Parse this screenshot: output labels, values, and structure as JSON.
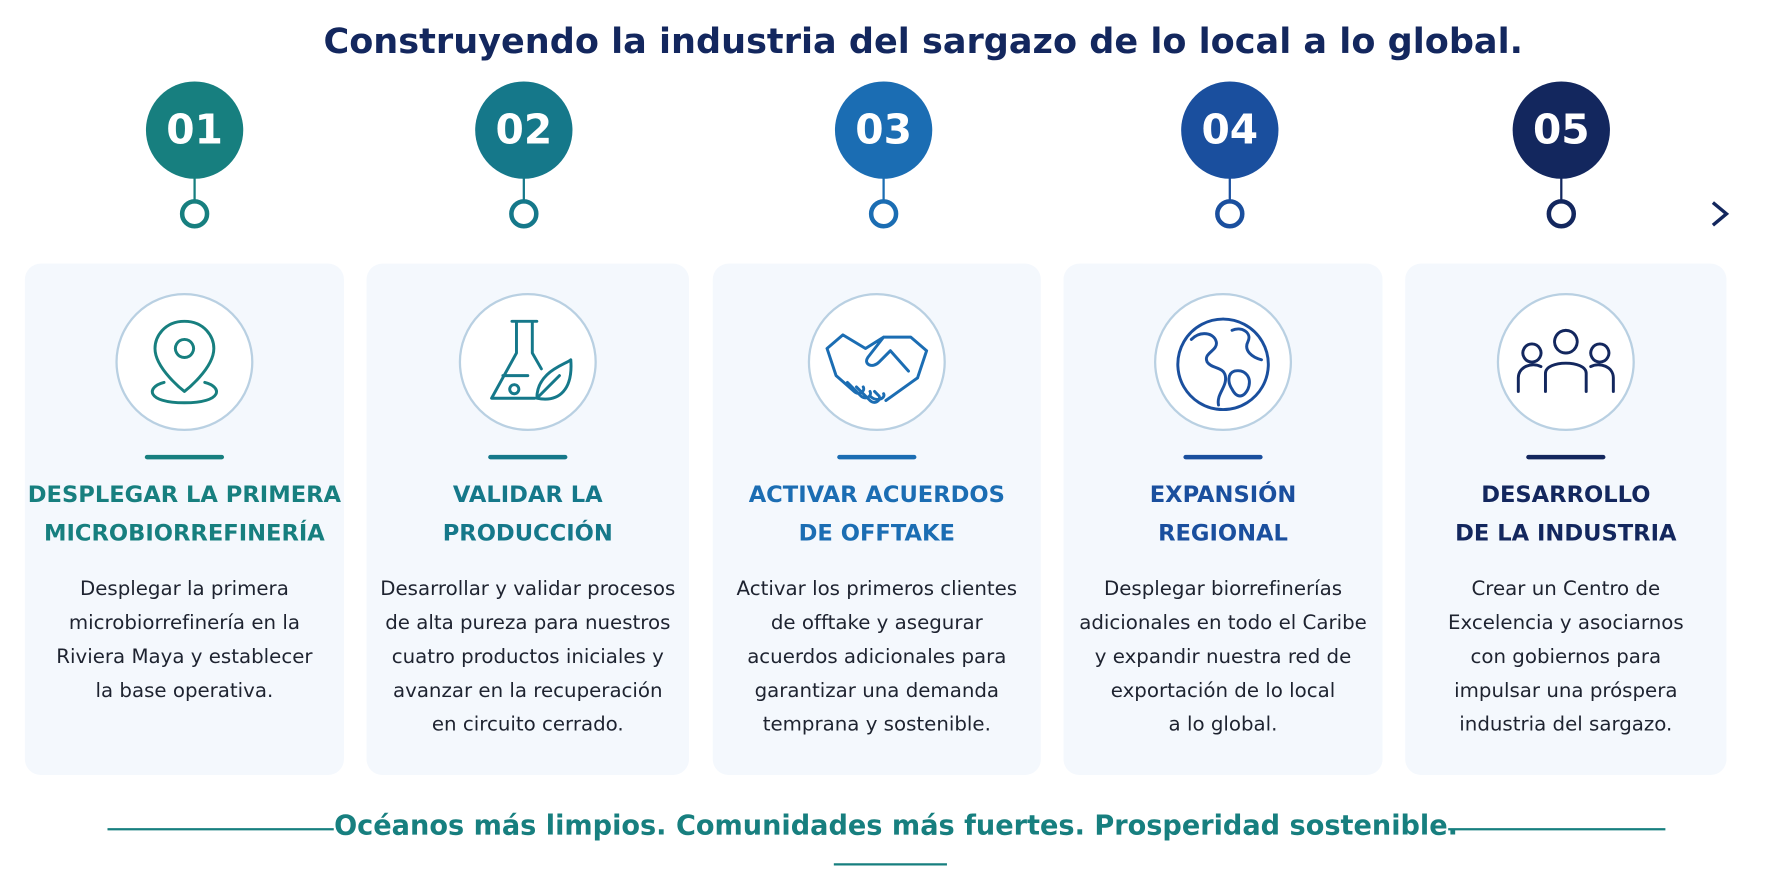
{
  "header": {
    "title": "Construyendo la industria del sargazo de lo local a lo global."
  },
  "steps": [
    {
      "number": "01",
      "color": "#177f7f",
      "title": [
        "DESPLEGAR LA PRIMERA",
        "MICROBIORREFINERÍA"
      ],
      "description": [
        "Desplegar la primera",
        "microbiorrefinería en la",
        "Riviera Maya y establecer",
        "la base operativa."
      ]
    },
    {
      "number": "02",
      "color": "#15788a",
      "title": [
        "VALIDAR LA",
        "PRODUCCIÓN"
      ],
      "description": [
        "Desarrollar y validar procesos",
        "de alta pureza para nuestros",
        "cuatro productos iniciales y",
        "avanzar en la recuperación",
        "en circuito cerrado."
      ]
    },
    {
      "number": "03",
      "color": "#1b6db3",
      "title": [
        "ACTIVAR ACUERDOS",
        "DE OFFTAKE"
      ],
      "description": [
        "Activar los primeros clientes",
        "de offtake y asegurar",
        "acuerdos adicionales para",
        "garantizar una demanda",
        "temprana y sostenible."
      ]
    },
    {
      "number": "04",
      "color": "#1a4f9e",
      "title": [
        "EXPANSIÓN",
        "REGIONAL"
      ],
      "description": [
        "Desplegar biorrefinerías",
        "adicionales en todo el Caribe",
        "y expandir nuestra red de",
        "exportación de lo local",
        "a lo global."
      ]
    },
    {
      "number": "05",
      "color": "#13275e",
      "title": [
        "DESARROLLO",
        "DE LA INDUSTRIA"
      ],
      "description": [
        "Crear un Centro de",
        "Excelencia y asociarnos",
        "con gobiernos para",
        "impulsar una próspera",
        "industria del sargazo."
      ]
    }
  ],
  "footer": {
    "tagline": "Océanos más limpios. Comunidades más fuertes. Prosperidad sostenible."
  }
}
